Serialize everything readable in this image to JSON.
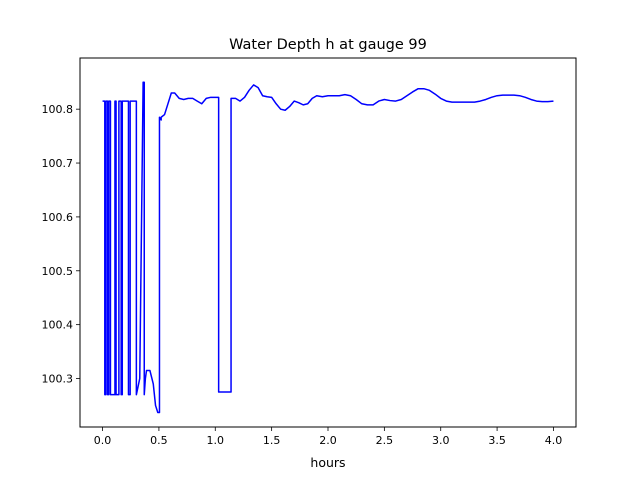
{
  "chart_data": {
    "type": "line",
    "title": "Water Depth h at gauge 99",
    "xlabel": "hours",
    "ylabel": "",
    "xlim": [
      -0.2,
      4.2
    ],
    "ylim": [
      100.21,
      100.895
    ],
    "xticks": [
      0.0,
      0.5,
      1.0,
      1.5,
      2.0,
      2.5,
      3.0,
      3.5,
      4.0
    ],
    "xtick_labels": [
      "0.0",
      "0.5",
      "1.0",
      "1.5",
      "2.0",
      "2.5",
      "3.0",
      "3.5",
      "4.0"
    ],
    "yticks": [
      100.3,
      100.4,
      100.5,
      100.6,
      100.7,
      100.8
    ],
    "ytick_labels": [
      "100.3",
      "100.4",
      "100.5",
      "100.6",
      "100.7",
      "100.8"
    ],
    "grid": false,
    "legend": "none",
    "series": [
      {
        "color": "#0000ff",
        "x": [
          0.0,
          0.02,
          0.02,
          0.03,
          0.03,
          0.045,
          0.045,
          0.055,
          0.055,
          0.07,
          0.07,
          0.11,
          0.11,
          0.12,
          0.12,
          0.145,
          0.145,
          0.165,
          0.165,
          0.175,
          0.175,
          0.185,
          0.185,
          0.23,
          0.23,
          0.245,
          0.245,
          0.255,
          0.255,
          0.3,
          0.3,
          0.33,
          0.36,
          0.37,
          0.37,
          0.38,
          0.39,
          0.42,
          0.45,
          0.47,
          0.49,
          0.505,
          0.505,
          0.52,
          0.52,
          0.55,
          0.58,
          0.61,
          0.64,
          0.68,
          0.72,
          0.76,
          0.8,
          0.84,
          0.88,
          0.92,
          0.96,
          1.0,
          1.03,
          1.03,
          1.06,
          1.1,
          1.14,
          1.14,
          1.18,
          1.22,
          1.26,
          1.3,
          1.34,
          1.38,
          1.42,
          1.46,
          1.5,
          1.54,
          1.58,
          1.62,
          1.66,
          1.7,
          1.74,
          1.78,
          1.82,
          1.86,
          1.9,
          1.95,
          2.0,
          2.05,
          2.1,
          2.15,
          2.2,
          2.25,
          2.3,
          2.35,
          2.4,
          2.45,
          2.5,
          2.55,
          2.6,
          2.65,
          2.7,
          2.75,
          2.8,
          2.85,
          2.9,
          2.95,
          3.0,
          3.05,
          3.1,
          3.15,
          3.2,
          3.25,
          3.3,
          3.35,
          3.4,
          3.45,
          3.5,
          3.55,
          3.6,
          3.65,
          3.7,
          3.75,
          3.8,
          3.85,
          3.9,
          3.95,
          4.0
        ],
        "y": [
          100.815,
          100.815,
          100.27,
          100.27,
          100.815,
          100.815,
          100.27,
          100.27,
          100.815,
          100.815,
          100.27,
          100.27,
          100.815,
          100.815,
          100.27,
          100.27,
          100.815,
          100.815,
          100.27,
          100.27,
          100.815,
          100.815,
          100.815,
          100.815,
          100.27,
          100.27,
          100.815,
          100.815,
          100.815,
          100.815,
          100.27,
          100.3,
          100.85,
          100.85,
          100.27,
          100.3,
          100.315,
          100.315,
          100.29,
          100.25,
          100.237,
          100.237,
          100.785,
          100.78,
          100.785,
          100.79,
          100.81,
          100.83,
          100.83,
          100.82,
          100.818,
          100.82,
          100.82,
          100.815,
          100.81,
          100.82,
          100.822,
          100.822,
          100.822,
          100.275,
          100.275,
          100.275,
          100.275,
          100.82,
          100.82,
          100.815,
          100.822,
          100.835,
          100.845,
          100.84,
          100.825,
          100.823,
          100.822,
          100.81,
          100.8,
          100.798,
          100.805,
          100.815,
          100.812,
          100.808,
          100.81,
          100.82,
          100.825,
          100.823,
          100.825,
          100.825,
          100.825,
          100.827,
          100.825,
          100.818,
          100.81,
          100.808,
          100.808,
          100.815,
          100.818,
          100.816,
          100.815,
          100.818,
          100.825,
          100.832,
          100.838,
          100.838,
          100.835,
          100.828,
          100.82,
          100.815,
          100.813,
          100.813,
          100.813,
          100.813,
          100.813,
          100.815,
          100.818,
          100.822,
          100.825,
          100.826,
          100.826,
          100.826,
          100.825,
          100.822,
          100.818,
          100.815,
          100.814,
          100.814,
          100.815
        ]
      }
    ]
  }
}
